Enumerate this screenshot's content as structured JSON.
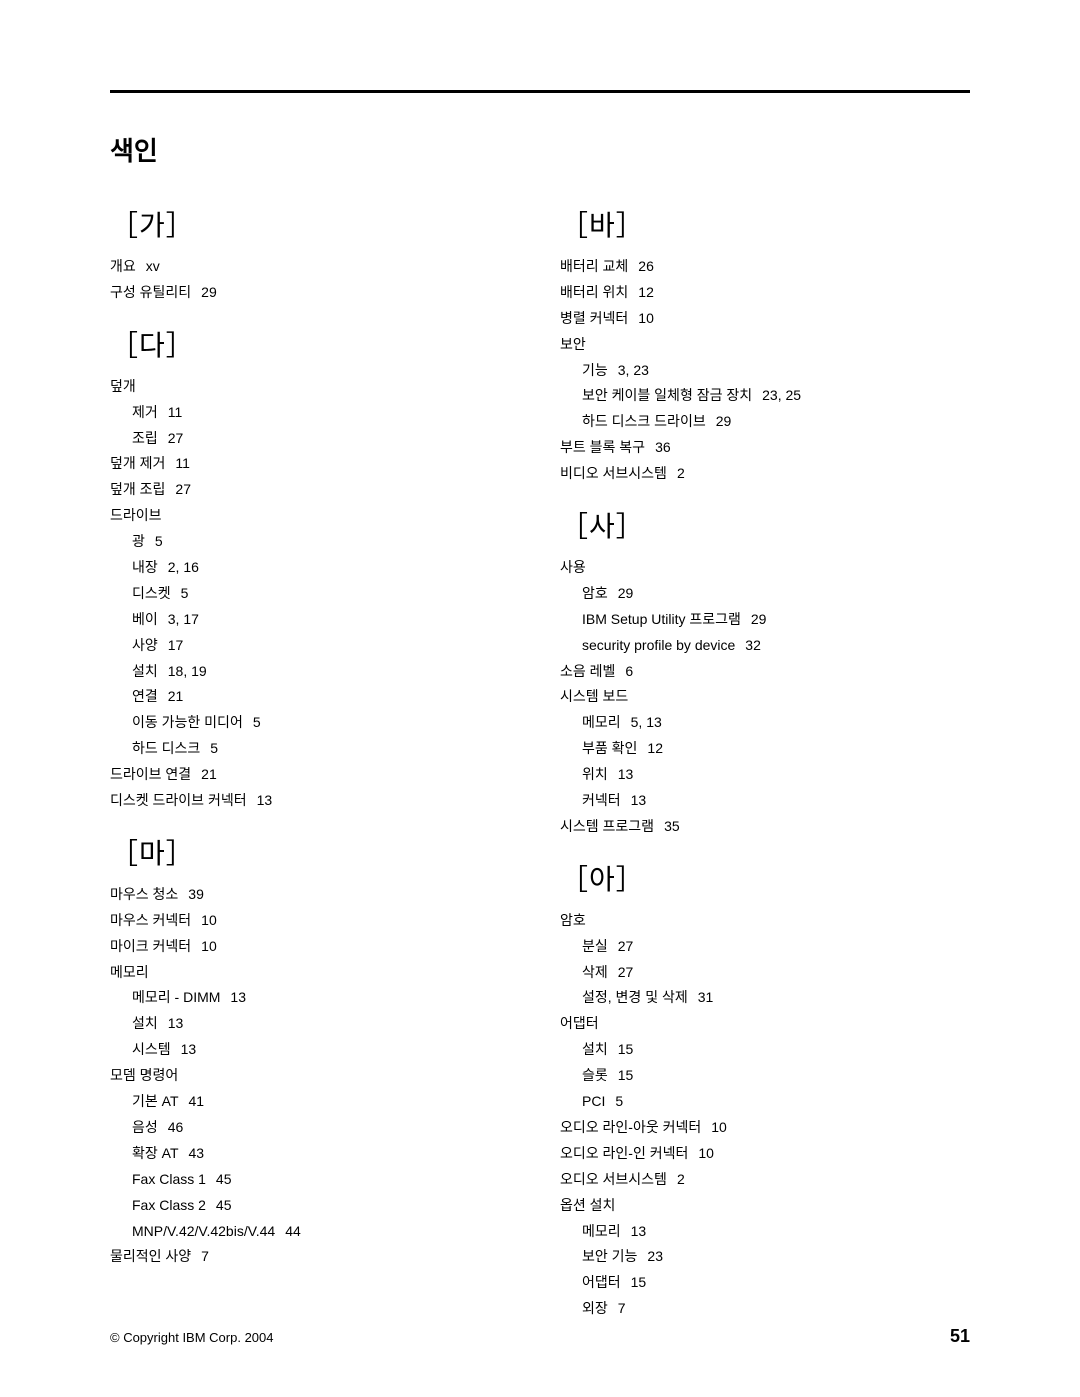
{
  "title": "색인",
  "copyright": "© Copyright IBM Corp. 2004",
  "page_number": "51",
  "left_column": [
    {
      "type": "heading",
      "text": "［가］"
    },
    {
      "type": "entry",
      "level": 0,
      "term": "개요",
      "pages": "xv"
    },
    {
      "type": "entry",
      "level": 0,
      "term": "구성 유틸리티",
      "pages": "29"
    },
    {
      "type": "heading",
      "text": "［다］"
    },
    {
      "type": "entry",
      "level": 0,
      "term": "덮개",
      "pages": ""
    },
    {
      "type": "entry",
      "level": 1,
      "term": "제거",
      "pages": "11"
    },
    {
      "type": "entry",
      "level": 1,
      "term": "조립",
      "pages": "27"
    },
    {
      "type": "entry",
      "level": 0,
      "term": "덮개 제거",
      "pages": "11"
    },
    {
      "type": "entry",
      "level": 0,
      "term": "덮개 조립",
      "pages": "27"
    },
    {
      "type": "entry",
      "level": 0,
      "term": "드라이브",
      "pages": ""
    },
    {
      "type": "entry",
      "level": 1,
      "term": "광",
      "pages": "5"
    },
    {
      "type": "entry",
      "level": 1,
      "term": "내장",
      "pages": "2, 16"
    },
    {
      "type": "entry",
      "level": 1,
      "term": "디스켓",
      "pages": "5"
    },
    {
      "type": "entry",
      "level": 1,
      "term": "베이",
      "pages": "3, 17"
    },
    {
      "type": "entry",
      "level": 1,
      "term": "사양",
      "pages": "17"
    },
    {
      "type": "entry",
      "level": 1,
      "term": "설치",
      "pages": "18, 19"
    },
    {
      "type": "entry",
      "level": 1,
      "term": "연결",
      "pages": "21"
    },
    {
      "type": "entry",
      "level": 1,
      "term": "이동 가능한 미디어",
      "pages": "5"
    },
    {
      "type": "entry",
      "level": 1,
      "term": "하드 디스크",
      "pages": "5"
    },
    {
      "type": "entry",
      "level": 0,
      "term": "드라이브 연결",
      "pages": "21"
    },
    {
      "type": "entry",
      "level": 0,
      "term": "디스켓 드라이브 커넥터",
      "pages": "13"
    },
    {
      "type": "heading",
      "text": "［마］"
    },
    {
      "type": "entry",
      "level": 0,
      "term": "마우스 청소",
      "pages": "39"
    },
    {
      "type": "entry",
      "level": 0,
      "term": "마우스 커넥터",
      "pages": "10"
    },
    {
      "type": "entry",
      "level": 0,
      "term": "마이크 커넥터",
      "pages": "10"
    },
    {
      "type": "entry",
      "level": 0,
      "term": "메모리",
      "pages": ""
    },
    {
      "type": "entry",
      "level": 1,
      "term": "메모리 - DIMM",
      "pages": "13"
    },
    {
      "type": "entry",
      "level": 1,
      "term": "설치",
      "pages": "13"
    },
    {
      "type": "entry",
      "level": 1,
      "term": "시스템",
      "pages": "13"
    },
    {
      "type": "entry",
      "level": 0,
      "term": "모뎀 명령어",
      "pages": ""
    },
    {
      "type": "entry",
      "level": 1,
      "term": "기본 AT",
      "pages": "41"
    },
    {
      "type": "entry",
      "level": 1,
      "term": "음성",
      "pages": "46"
    },
    {
      "type": "entry",
      "level": 1,
      "term": "확장 AT",
      "pages": "43"
    },
    {
      "type": "entry",
      "level": 1,
      "term": "Fax Class 1",
      "pages": "45"
    },
    {
      "type": "entry",
      "level": 1,
      "term": "Fax Class 2",
      "pages": "45"
    },
    {
      "type": "entry",
      "level": 1,
      "term": "MNP/V.42/V.42bis/V.44",
      "pages": "44"
    },
    {
      "type": "entry",
      "level": 0,
      "term": "물리적인 사양",
      "pages": "7"
    }
  ],
  "right_column": [
    {
      "type": "heading",
      "text": "［바］"
    },
    {
      "type": "entry",
      "level": 0,
      "term": "배터리 교체",
      "pages": "26"
    },
    {
      "type": "entry",
      "level": 0,
      "term": "배터리 위치",
      "pages": "12"
    },
    {
      "type": "entry",
      "level": 0,
      "term": "병렬 커넥터",
      "pages": "10"
    },
    {
      "type": "entry",
      "level": 0,
      "term": "보안",
      "pages": ""
    },
    {
      "type": "entry",
      "level": 1,
      "term": "기능",
      "pages": "3, 23"
    },
    {
      "type": "entry",
      "level": 1,
      "term": "보안 케이블 일체형 잠금 장치",
      "pages": "23, 25"
    },
    {
      "type": "entry",
      "level": 1,
      "term": "하드 디스크 드라이브",
      "pages": "29"
    },
    {
      "type": "entry",
      "level": 0,
      "term": "부트 블록 복구",
      "pages": "36"
    },
    {
      "type": "entry",
      "level": 0,
      "term": "비디오 서브시스템",
      "pages": "2"
    },
    {
      "type": "heading",
      "text": "［사］"
    },
    {
      "type": "entry",
      "level": 0,
      "term": "사용",
      "pages": ""
    },
    {
      "type": "entry",
      "level": 1,
      "term": "암호",
      "pages": "29"
    },
    {
      "type": "entry",
      "level": 1,
      "term": "IBM Setup Utility 프로그램",
      "pages": "29"
    },
    {
      "type": "entry",
      "level": 1,
      "term": "security profile by device",
      "pages": "32"
    },
    {
      "type": "entry",
      "level": 0,
      "term": "소음 레벨",
      "pages": "6"
    },
    {
      "type": "entry",
      "level": 0,
      "term": "시스템 보드",
      "pages": ""
    },
    {
      "type": "entry",
      "level": 1,
      "term": "메모리",
      "pages": "5, 13"
    },
    {
      "type": "entry",
      "level": 1,
      "term": "부품 확인",
      "pages": "12"
    },
    {
      "type": "entry",
      "level": 1,
      "term": "위치",
      "pages": "13"
    },
    {
      "type": "entry",
      "level": 1,
      "term": "커넥터",
      "pages": "13"
    },
    {
      "type": "entry",
      "level": 0,
      "term": "시스템 프로그램",
      "pages": "35"
    },
    {
      "type": "heading",
      "text": "［아］"
    },
    {
      "type": "entry",
      "level": 0,
      "term": "암호",
      "pages": ""
    },
    {
      "type": "entry",
      "level": 1,
      "term": "분실",
      "pages": "27"
    },
    {
      "type": "entry",
      "level": 1,
      "term": "삭제",
      "pages": "27"
    },
    {
      "type": "entry",
      "level": 1,
      "term": "설정, 변경 및 삭제",
      "pages": "31"
    },
    {
      "type": "entry",
      "level": 0,
      "term": "어댑터",
      "pages": ""
    },
    {
      "type": "entry",
      "level": 1,
      "term": "설치",
      "pages": "15"
    },
    {
      "type": "entry",
      "level": 1,
      "term": "슬롯",
      "pages": "15"
    },
    {
      "type": "entry",
      "level": 1,
      "term": "PCI",
      "pages": "5"
    },
    {
      "type": "entry",
      "level": 0,
      "term": "오디오 라인-아웃 커넥터",
      "pages": "10"
    },
    {
      "type": "entry",
      "level": 0,
      "term": "오디오 라인-인 커넥터",
      "pages": "10"
    },
    {
      "type": "entry",
      "level": 0,
      "term": "오디오 서브시스템",
      "pages": "2"
    },
    {
      "type": "entry",
      "level": 0,
      "term": "옵션 설치",
      "pages": ""
    },
    {
      "type": "entry",
      "level": 1,
      "term": "메모리",
      "pages": "13"
    },
    {
      "type": "entry",
      "level": 1,
      "term": "보안 기능",
      "pages": "23"
    },
    {
      "type": "entry",
      "level": 1,
      "term": "어댑터",
      "pages": "15"
    },
    {
      "type": "entry",
      "level": 1,
      "term": "외장",
      "pages": "7"
    }
  ]
}
